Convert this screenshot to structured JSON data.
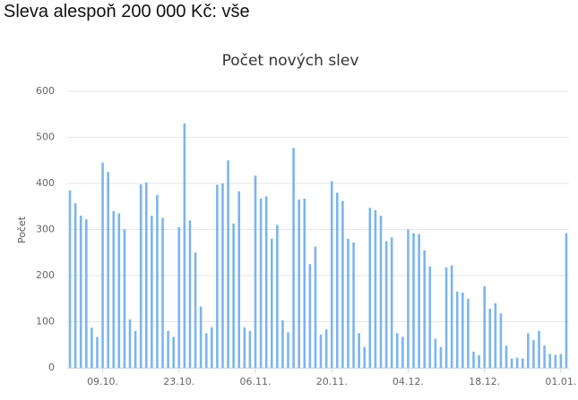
{
  "page_title": "Sleva alespoň 200 000 Kč: vše",
  "chart_data": {
    "type": "bar",
    "title": "Počet nových slev",
    "y_label": "Počet",
    "color": "#7cb5ec",
    "grid": true,
    "ylim": [
      0,
      600
    ],
    "yticks": [
      0,
      100,
      200,
      300,
      400,
      500,
      600
    ],
    "categories": [
      null,
      null,
      null,
      null,
      null,
      null,
      "09.10.",
      null,
      null,
      null,
      null,
      null,
      null,
      null,
      null,
      null,
      null,
      null,
      null,
      null,
      "23.10.",
      null,
      null,
      null,
      null,
      null,
      null,
      null,
      null,
      null,
      null,
      null,
      null,
      null,
      "06.11.",
      null,
      null,
      null,
      null,
      null,
      null,
      null,
      null,
      null,
      null,
      null,
      null,
      null,
      "20.11.",
      null,
      null,
      null,
      null,
      null,
      null,
      null,
      null,
      null,
      null,
      null,
      null,
      null,
      "04.12.",
      null,
      null,
      null,
      null,
      null,
      null,
      null,
      null,
      null,
      null,
      null,
      null,
      null,
      "18.12.",
      null,
      null,
      null,
      null,
      null,
      null,
      null,
      null,
      null,
      null,
      null,
      null,
      null,
      "01.01.",
      null
    ],
    "values": [
      385,
      357,
      330,
      322,
      87,
      67,
      445,
      425,
      340,
      335,
      300,
      105,
      80,
      398,
      402,
      330,
      375,
      325,
      80,
      67,
      305,
      530,
      320,
      250,
      133,
      75,
      88,
      397,
      400,
      450,
      313,
      383,
      88,
      80,
      417,
      367,
      372,
      280,
      310,
      103,
      77,
      477,
      365,
      367,
      225,
      263,
      72,
      83,
      405,
      380,
      362,
      280,
      272,
      75,
      45,
      347,
      342,
      330,
      275,
      283,
      75,
      67,
      300,
      292,
      290,
      255,
      220,
      63,
      45,
      218,
      222,
      165,
      163,
      150,
      35,
      27,
      177,
      128,
      140,
      118,
      48,
      20,
      22,
      20,
      75,
      60,
      80,
      48,
      30,
      28,
      30,
      292
    ]
  }
}
